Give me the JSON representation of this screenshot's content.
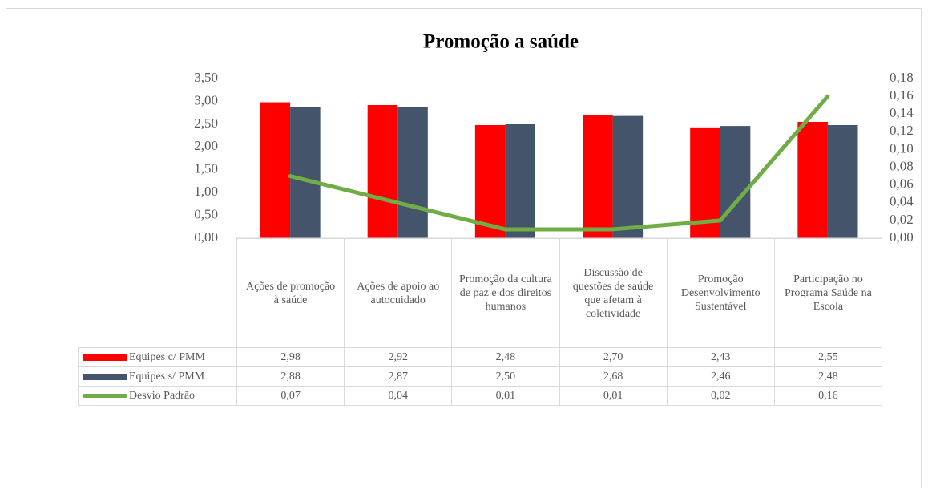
{
  "chart_data": {
    "type": "bar-line",
    "title": "Promoção a saúde",
    "categories": [
      "Ações de promoção à saúde",
      "Ações de apoio ao autocuidado",
      "Promoção da cultura de paz e dos direitos humanos",
      "Discussão de questões de saúde que afetam à coletividade",
      "Promoção Desenvolvimento Sustentável",
      "Participação no Programa Saúde na Escola"
    ],
    "series": [
      {
        "name": "Equipes c/ PMM",
        "color": "#ff0000",
        "type": "bar",
        "values": [
          2.98,
          2.92,
          2.48,
          2.7,
          2.43,
          2.55
        ],
        "value_labels": [
          "2,98",
          "2,92",
          "2,48",
          "2,70",
          "2,43",
          "2,55"
        ]
      },
      {
        "name": "Equipes s/ PMM",
        "color": "#44546a",
        "type": "bar",
        "values": [
          2.88,
          2.87,
          2.5,
          2.68,
          2.46,
          2.48
        ],
        "value_labels": [
          "2,88",
          "2,87",
          "2,50",
          "2,68",
          "2,46",
          "2,48"
        ]
      },
      {
        "name": "Desvio Padrão",
        "color": "#70ad47",
        "type": "line",
        "axis": "y2",
        "values": [
          0.07,
          0.04,
          0.01,
          0.01,
          0.02,
          0.16
        ],
        "value_labels": [
          "0,07",
          "0,04",
          "0,01",
          "0,01",
          "0,02",
          "0,16"
        ]
      }
    ],
    "ylim": [
      0,
      3.5
    ],
    "yticks": [
      {
        "value": 0,
        "label": "0,00"
      },
      {
        "value": 0.5,
        "label": "0,50"
      },
      {
        "value": 1,
        "label": "1,00"
      },
      {
        "value": 1.5,
        "label": "1,50"
      },
      {
        "value": 2,
        "label": "2,00"
      },
      {
        "value": 2.5,
        "label": "2,50"
      },
      {
        "value": 3,
        "label": "3,00"
      },
      {
        "value": 3.5,
        "label": "3,50"
      }
    ],
    "y2lim": [
      0,
      0.18
    ],
    "y2ticks": [
      {
        "value": 0,
        "label": "0,00"
      },
      {
        "value": 0.02,
        "label": "0,02"
      },
      {
        "value": 0.04,
        "label": "0,04"
      },
      {
        "value": 0.06,
        "label": "0,06"
      },
      {
        "value": 0.08,
        "label": "0,08"
      },
      {
        "value": 0.1,
        "label": "0,10"
      },
      {
        "value": 0.12,
        "label": "0,12"
      },
      {
        "value": 0.14,
        "label": "0,14"
      },
      {
        "value": 0.16,
        "label": "0,16"
      },
      {
        "value": 0.18,
        "label": "0,18"
      }
    ],
    "data_table": true
  }
}
